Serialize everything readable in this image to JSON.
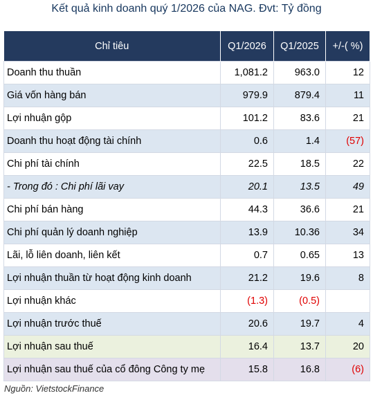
{
  "title": "Kết quả kinh doanh quý 1/2026 của NAG. Đvt: Tỷ đồng",
  "table": {
    "header": [
      "Chỉ tiêu",
      "Q1/2026",
      "Q1/2025",
      "+/-( %)"
    ],
    "rows": [
      [
        "Doanh thu thuần",
        "1,081.2",
        "963.0",
        "12"
      ],
      [
        "Giá vốn hàng bán",
        "979.9",
        "879.4",
        "11"
      ],
      [
        "Lợi nhuận gộp",
        "101.2",
        "83.6",
        "21"
      ],
      [
        "Doanh thu hoạt động tài chính",
        "0.6",
        "1.4",
        "(57)"
      ],
      [
        "Chi phí tài chính",
        "22.5",
        "18.5",
        "22"
      ],
      [
        "- Trong đó : Chi phí lãi vay",
        "20.1",
        "13.5",
        "49"
      ],
      [
        "Chi phí bán hàng",
        "44.3",
        "36.6",
        "21"
      ],
      [
        "Chi phí quản lý doanh nghiệp",
        "13.9",
        "10.36",
        "34"
      ],
      [
        "Lãi, lỗ liên doanh, liên kết",
        "0.7",
        "0.65",
        "13"
      ],
      [
        "Lợi nhuận thuần từ hoạt động kinh doanh",
        "21.2",
        "19.6",
        "8"
      ],
      [
        "Lợi nhuận khác",
        "(1.3)",
        "(0.5)"
      ],
      [
        "Lợi nhuận trước thuế",
        "20.6",
        "19.7",
        "4"
      ],
      [
        "Lợi nhuận sau thuế",
        "16.4",
        "13.7",
        "20"
      ],
      [
        "Lợi nhuận sau thuế của cổ đông Công ty mẹ",
        "15.8",
        "16.8",
        "(6)"
      ]
    ]
  },
  "source": "Nguồn: VietstockFinance"
}
